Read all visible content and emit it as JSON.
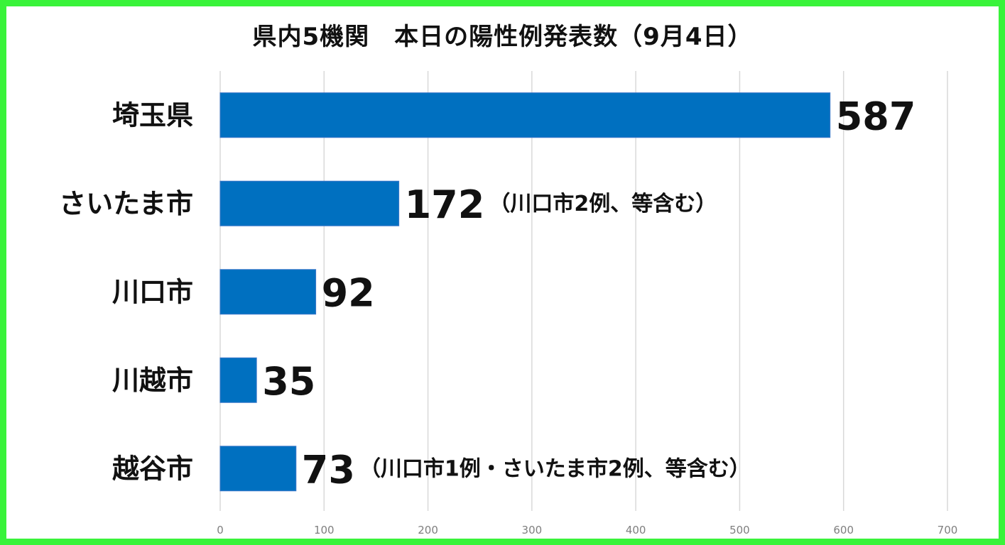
{
  "chart_data": {
    "type": "bar",
    "orientation": "horizontal",
    "title": "県内5機関　本日の陽性例発表数（9月4日）",
    "categories": [
      "埼玉県",
      "さいたま市",
      "川口市",
      "川越市",
      "越谷市"
    ],
    "values": [
      587,
      172,
      92,
      35,
      73
    ],
    "value_labels": [
      "587",
      "172",
      "92",
      "35",
      "73"
    ],
    "annotations": [
      "",
      "（川口市2例、等含む）",
      "",
      "",
      "（川口市1例・さいたま市2例、等含む）"
    ],
    "xlim": [
      0,
      700
    ],
    "xticks": [
      0,
      100,
      200,
      300,
      400,
      500,
      600,
      700
    ],
    "tick_labels": [
      "0",
      "100",
      "200",
      "300",
      "400",
      "500",
      "600",
      "700"
    ],
    "grid": true,
    "bar_color": "#0070c0",
    "frame_color": "#39f33a"
  }
}
